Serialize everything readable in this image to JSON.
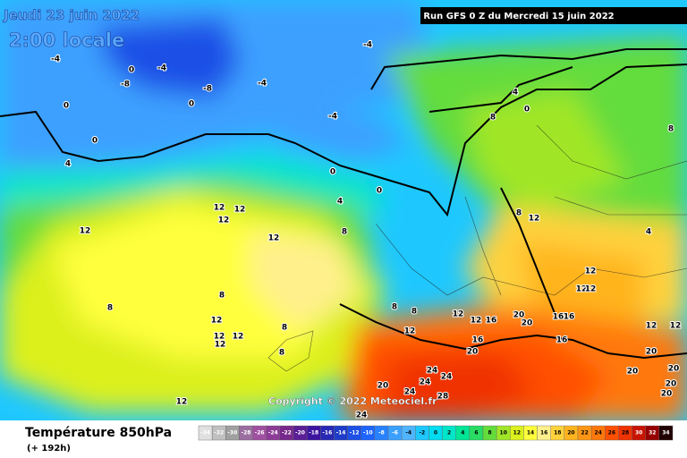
{
  "header": {
    "date": "Jeudi 23 juin 2022",
    "time": "2:00 locale",
    "run": "Run GFS 0 Z du Mercredi 15 juin 2022"
  },
  "copyright": "Copyright © 2022 Meteociel.fr",
  "footer": {
    "title": "Température 850hPa",
    "subtitle": "(+ 192h)"
  },
  "legend": {
    "ticks": [
      -34,
      -32,
      -30,
      -28,
      -26,
      -24,
      -22,
      -20,
      -18,
      -16,
      -14,
      -12,
      -10,
      -8,
      -6,
      -4,
      -2,
      0,
      2,
      4,
      6,
      8,
      10,
      12,
      14,
      16,
      18,
      20,
      22,
      24,
      26,
      28,
      30,
      32,
      34
    ],
    "colors": [
      "#e0e0e0",
      "#c0c0c0",
      "#a0a0a0",
      "#9b6ea0",
      "#a050a0",
      "#8c3c96",
      "#78288c",
      "#5a1e96",
      "#3c14a0",
      "#2828b4",
      "#1e3cc8",
      "#1e50e6",
      "#1e64ff",
      "#2882ff",
      "#3ca0ff",
      "#50b4ff",
      "#1ec8ff",
      "#00dcf0",
      "#00e6c8",
      "#00e696",
      "#28dc64",
      "#64dc3c",
      "#a0e628",
      "#dcf01e",
      "#ffff3c",
      "#fff08c",
      "#ffd23c",
      "#ffb41e",
      "#ff9614",
      "#ff780a",
      "#ff5000",
      "#f03200",
      "#c81400",
      "#960000",
      "#200000"
    ]
  },
  "map_labels": [
    -4,
    0,
    -4,
    -8,
    -8,
    -4,
    0,
    0,
    0,
    4,
    -4,
    -4,
    0,
    0,
    4,
    8,
    12,
    12,
    12,
    12,
    12,
    8,
    8,
    12,
    12,
    12,
    12,
    8,
    8,
    12,
    8,
    8,
    4,
    0,
    8,
    12,
    4,
    12,
    12,
    12,
    8,
    8,
    12,
    12,
    16,
    20,
    20,
    16,
    16,
    12,
    12,
    12,
    16,
    20,
    16,
    20,
    20,
    20,
    20,
    20,
    24,
    24,
    24,
    20,
    24,
    28,
    24
  ]
}
